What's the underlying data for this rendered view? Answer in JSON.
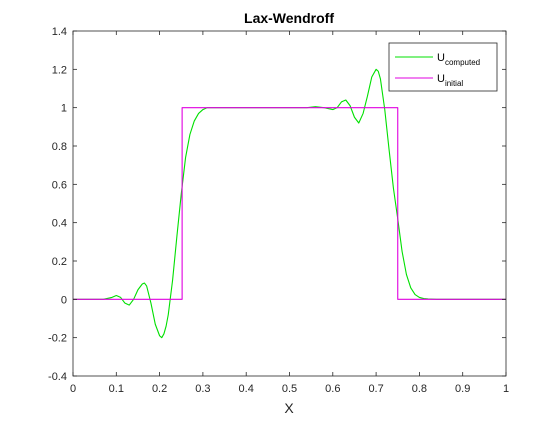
{
  "chart_data": {
    "type": "line",
    "title": "Lax-Wendroff",
    "xlabel": "X",
    "ylabel": "",
    "xlim": [
      0,
      1
    ],
    "ylim": [
      -0.4,
      1.4
    ],
    "xticks": [
      0,
      0.1,
      0.2,
      0.3,
      0.4,
      0.5,
      0.6,
      0.7,
      0.8,
      0.9,
      1
    ],
    "xtick_labels": [
      "0",
      "0.1",
      "0.2",
      "0.3",
      "0.4",
      "0.5",
      "0.6",
      "0.7",
      "0.8",
      "0.9",
      "1"
    ],
    "yticks": [
      -0.4,
      -0.2,
      0,
      0.2,
      0.4,
      0.6,
      0.8,
      1,
      1.2,
      1.4
    ],
    "ytick_labels": [
      "-0.4",
      "-0.2",
      "0",
      "0.2",
      "0.4",
      "0.6",
      "0.8",
      "1",
      "1.2",
      "1.4"
    ],
    "grid": false,
    "legend": {
      "placement": "top-right"
    },
    "series": [
      {
        "name": "U",
        "name_subscript": "computed",
        "color": "#00e000",
        "x": [
          0,
          0.05,
          0.07,
          0.09,
          0.1,
          0.11,
          0.12,
          0.13,
          0.14,
          0.15,
          0.16,
          0.165,
          0.17,
          0.18,
          0.19,
          0.2,
          0.205,
          0.21,
          0.215,
          0.22,
          0.23,
          0.24,
          0.25,
          0.26,
          0.27,
          0.28,
          0.29,
          0.3,
          0.31,
          0.32,
          0.33,
          0.35,
          0.4,
          0.5,
          0.54,
          0.56,
          0.58,
          0.6,
          0.61,
          0.62,
          0.63,
          0.64,
          0.65,
          0.66,
          0.67,
          0.68,
          0.69,
          0.7,
          0.705,
          0.71,
          0.72,
          0.73,
          0.74,
          0.75,
          0.76,
          0.77,
          0.78,
          0.79,
          0.8,
          0.81,
          0.82,
          0.84,
          0.9,
          1
        ],
        "y": [
          0,
          0,
          0,
          0.01,
          0.02,
          0.01,
          -0.02,
          -0.03,
          0.0,
          0.05,
          0.08,
          0.085,
          0.07,
          -0.02,
          -0.13,
          -0.19,
          -0.2,
          -0.18,
          -0.14,
          -0.08,
          0.1,
          0.33,
          0.55,
          0.74,
          0.86,
          0.93,
          0.97,
          0.99,
          1.0,
          1.0,
          1.0,
          1.0,
          1.0,
          1.0,
          1.0,
          1.005,
          1.0,
          0.99,
          1.0,
          1.03,
          1.04,
          1.01,
          0.95,
          0.92,
          0.97,
          1.06,
          1.16,
          1.2,
          1.19,
          1.15,
          0.99,
          0.78,
          0.58,
          0.42,
          0.25,
          0.13,
          0.06,
          0.025,
          0.01,
          0.004,
          0.002,
          0,
          0,
          0
        ]
      },
      {
        "name": "U",
        "name_subscript": "initial",
        "color": "#e000e0",
        "x": [
          0,
          0.252,
          0.252,
          0.75,
          0.75,
          1
        ],
        "y": [
          0,
          0,
          1,
          1,
          0,
          0
        ]
      }
    ]
  }
}
